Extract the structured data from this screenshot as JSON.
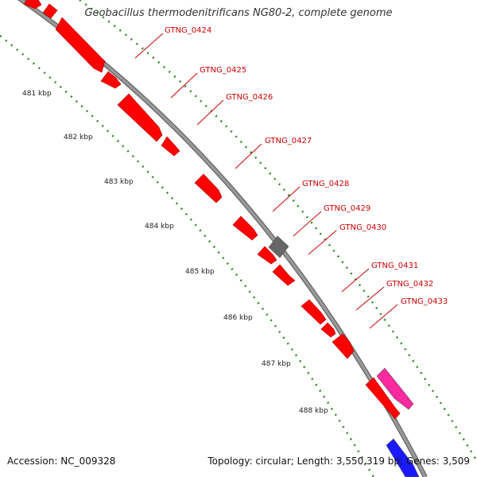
{
  "header": {
    "title": "Geobacillus thermodenitrificans NG80-2, complete genome"
  },
  "footer": {
    "accession": "Accession: NC_009328",
    "summary": "Topology: circular; Length: 3,550,319 bp; Genes: 3,509"
  },
  "colors": {
    "backbone": "#999999",
    "backbone_edge": "#666666",
    "gene_cds": "#ff0000",
    "gene_other": "#666666",
    "gene_pink": "#ff2aa0",
    "gene_blue": "#1a1aff",
    "gene_edge": "#b00000",
    "tick_dots": "#2e8b20",
    "label": "#cc0000"
  },
  "scale_ticks": [
    "481 kbp",
    "482 kbp",
    "483 kbp",
    "484 kbp",
    "485 kbp",
    "486 kbp",
    "487 kbp",
    "488 kbp"
  ],
  "gene_labels": [
    "GTNG_0424",
    "GTNG_0425",
    "GTNG_0426",
    "GTNG_0427",
    "GTNG_0428",
    "GTNG_0429",
    "GTNG_0430",
    "GTNG_0431",
    "GTNG_0432",
    "GTNG_0433"
  ]
}
